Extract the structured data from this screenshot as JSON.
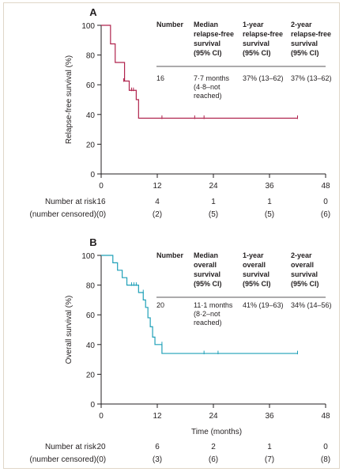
{
  "colors": {
    "panelA": "#b0234d",
    "panelB": "#1fa0b8",
    "axis": "#231f20"
  },
  "chart_data": [
    {
      "type": "line",
      "subtype": "kaplan-meier",
      "panel_label": "A",
      "title": "",
      "ylabel": "Relapse-free survival (%)",
      "xlabel": "",
      "xlim": [
        0,
        48
      ],
      "ylim": [
        0,
        100
      ],
      "x_ticks": [
        "0",
        "12",
        "24",
        "36",
        "48"
      ],
      "y_ticks": [
        "0",
        "20",
        "40",
        "60",
        "80",
        "100"
      ],
      "color": "#b0234d",
      "series": [
        {
          "x": [
            0,
            1.5,
            2.0,
            3.0,
            4.5,
            5.0,
            6.0,
            7.0,
            7.5,
            8.0,
            42
          ],
          "y": [
            100,
            100,
            87.5,
            75,
            75,
            62.5,
            56.25,
            56.25,
            50,
            37.5,
            37.5
          ]
        }
      ],
      "censored": [
        {
          "x": 4.8,
          "y": 62.5
        },
        {
          "x": 6.5,
          "y": 56.25
        },
        {
          "x": 6.9,
          "y": 56.25
        },
        {
          "x": 13,
          "y": 37.5
        },
        {
          "x": 20,
          "y": 37.5
        },
        {
          "x": 22,
          "y": 37.5
        },
        {
          "x": 42,
          "y": 37.5
        }
      ],
      "table": {
        "headers": [
          [
            "Number"
          ],
          [
            "Median",
            "relapse-free",
            "survival",
            "(95% CI)"
          ],
          [
            "1-year",
            "relapse-free",
            "survival",
            "(95% CI)"
          ],
          [
            "2-year",
            "relapse-free",
            "survival",
            "(95% CI)"
          ]
        ],
        "row": [
          [
            "16"
          ],
          [
            "7·7 months",
            "(4·8–not",
            "reached)"
          ],
          [
            "37% (13–62)"
          ],
          [
            "37% (13–62)"
          ]
        ]
      },
      "risk": {
        "label1": "Number at risk",
        "label2": "(number censored)",
        "at_risk": [
          "16",
          "4",
          "1",
          "1",
          "0"
        ],
        "censored": [
          "(0)",
          "(2)",
          "(5)",
          "(5)",
          "(6)"
        ]
      }
    },
    {
      "type": "line",
      "subtype": "kaplan-meier",
      "panel_label": "B",
      "title": "",
      "ylabel": "Overall survival (%)",
      "xlabel": "Time (months)",
      "xlim": [
        0,
        48
      ],
      "ylim": [
        0,
        100
      ],
      "x_ticks": [
        "0",
        "12",
        "24",
        "36",
        "48"
      ],
      "y_ticks": [
        "0",
        "20",
        "40",
        "60",
        "80",
        "100"
      ],
      "color": "#1fa0b8",
      "series": [
        {
          "x": [
            0,
            2.5,
            3.5,
            4.5,
            5.5,
            8.0,
            9.0,
            9.5,
            10.0,
            10.5,
            11.0,
            11.5,
            12.0,
            13.0,
            42
          ],
          "y": [
            100,
            95,
            90,
            85,
            80,
            75,
            70,
            65,
            58,
            52,
            45,
            40,
            40,
            34,
            34
          ]
        }
      ],
      "censored": [
        {
          "x": 6.5,
          "y": 80
        },
        {
          "x": 7.0,
          "y": 80
        },
        {
          "x": 7.5,
          "y": 80
        },
        {
          "x": 9.0,
          "y": 75
        },
        {
          "x": 13,
          "y": 40
        },
        {
          "x": 22,
          "y": 34
        },
        {
          "x": 25,
          "y": 34
        },
        {
          "x": 42,
          "y": 34
        }
      ],
      "table": {
        "headers": [
          [
            "Number"
          ],
          [
            "Median",
            "overall",
            "survival",
            "(95% CI)"
          ],
          [
            "1-year",
            "overall",
            "survival",
            "(95% CI)"
          ],
          [
            "2-year",
            "overall",
            "survival",
            "(95% CI)"
          ]
        ],
        "row": [
          [
            "20"
          ],
          [
            "11·1 months",
            "(8·2–not",
            "reached)"
          ],
          [
            "41% (19–63)"
          ],
          [
            "34% (14–56)"
          ]
        ]
      },
      "risk": {
        "label1": "Number at risk",
        "label2": "(number censored)",
        "at_risk": [
          "20",
          "6",
          "2",
          "1",
          "0"
        ],
        "censored": [
          "(0)",
          "(3)",
          "(6)",
          "(7)",
          "(8)"
        ]
      }
    }
  ]
}
